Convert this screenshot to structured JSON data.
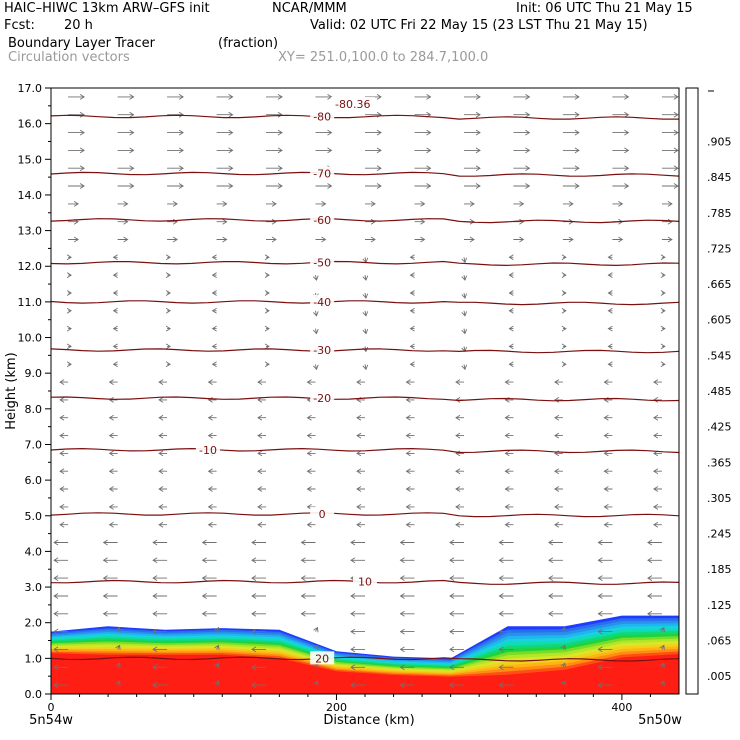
{
  "header": {
    "model": "HAIC–HIWC 13km ARW–GFS init",
    "org": "NCAR/MMM",
    "init": "Init: 06 UTC Thu 21 May 15",
    "fcst_label": "Fcst:",
    "fcst_value": "20 h",
    "valid": "Valid: 02 UTC Fri 22 May 15 (23 LST Thu 21 May 15)",
    "field": "Boundary Layer Tracer",
    "field_units": "(fraction)",
    "vectors": "Circulation vectors",
    "xy": "XY= 251.0,100.0 to 284.7,100.0"
  },
  "chart_data": {
    "type": "heatmap",
    "xlabel": "Distance (km)",
    "ylabel": "Height (km)",
    "xlim": [
      0,
      440
    ],
    "ylim": [
      0.0,
      17.0
    ],
    "x_ticks": [
      0,
      200,
      400
    ],
    "y_ticks": [
      "0.0",
      "1.0",
      "2.0",
      "3.0",
      "4.0",
      "5.0",
      "6.0",
      "7.0",
      "8.0",
      "9.0",
      "10.0",
      "11.0",
      "12.0",
      "13.0",
      "14.0",
      "15.0",
      "16.0",
      "17.0"
    ],
    "x_end_labels": {
      "left": "5n54w",
      "right": "5n50w"
    },
    "colorbar": {
      "labels": [
        ".005",
        ".065",
        ".125",
        ".185",
        ".245",
        ".305",
        ".365",
        ".425",
        ".485",
        ".545",
        ".605",
        ".665",
        ".725",
        ".785",
        ".845",
        ".905"
      ],
      "colors": [
        "#ffffff",
        "#1e3cff",
        "#2a6ef0",
        "#2890e8",
        "#20b4f0",
        "#18d2dc",
        "#10dcb4",
        "#10d878",
        "#20d23c",
        "#78dc28",
        "#b4e628",
        "#dce628",
        "#f0d21e",
        "#ffb414",
        "#ff8c14",
        "#ff5014",
        "#ff1e14"
      ]
    },
    "contour_labels": [
      "-80",
      "-80.36",
      "-70",
      "-60",
      "-50",
      "-40",
      "-30",
      "-20",
      "-10",
      "0",
      "10",
      "20"
    ],
    "contour_levels": [
      {
        "label": "20",
        "height_km": 1.0
      },
      {
        "label": "10",
        "height_km": 3.15
      },
      {
        "label": "0",
        "height_km": 5.05
      },
      {
        "label": "-10",
        "height_km": 6.85
      },
      {
        "label": "-20",
        "height_km": 8.3
      },
      {
        "label": "-30",
        "height_km": 9.65
      },
      {
        "label": "-40",
        "height_km": 11.0
      },
      {
        "label": "-50",
        "height_km": 12.1
      },
      {
        "label": "-60",
        "height_km": 13.3
      },
      {
        "label": "-70",
        "height_km": 14.6
      },
      {
        "label": "-80",
        "height_km": 16.2
      }
    ],
    "tracer_profile": {
      "distance_km": [
        0,
        40,
        80,
        120,
        160,
        200,
        240,
        280,
        320,
        360,
        400,
        440
      ],
      "top_005_km": [
        1.75,
        1.9,
        1.8,
        1.85,
        1.8,
        1.2,
        1.05,
        1.0,
        1.9,
        1.9,
        2.2,
        2.2
      ],
      "top_905_km": [
        1.1,
        1.05,
        1.05,
        1.05,
        0.95,
        0.6,
        0.5,
        0.45,
        0.45,
        0.6,
        0.95,
        1.05
      ]
    }
  }
}
